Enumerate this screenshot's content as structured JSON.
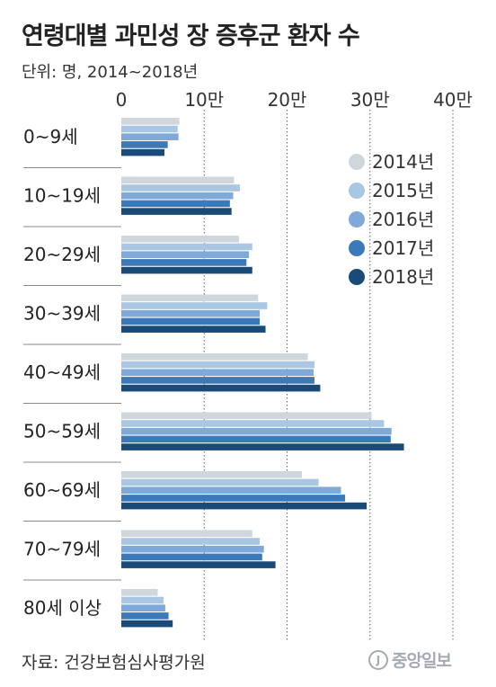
{
  "header": {
    "title": "연령대별 과민성 장 증후군 환자 수",
    "subtitle": "단위: 명, 2014~2018년"
  },
  "footer": {
    "source": "자료: 건강보험심사평가원",
    "logo_text": "중앙일보",
    "logo_icon": "joongang-logo-icon"
  },
  "chart_data": {
    "type": "bar",
    "orientation": "horizontal",
    "title": "연령대별 과민성 장 증후군 환자 수",
    "subtitle": "단위: 명, 2014~2018년",
    "xlim": [
      0,
      400000
    ],
    "x_ticks": [
      0,
      100000,
      200000,
      300000,
      400000
    ],
    "x_tick_labels": [
      "0",
      "10만",
      "20만",
      "30만",
      "40만"
    ],
    "grid": true,
    "legend": "top-right",
    "categories": [
      "0~9세",
      "10~19세",
      "20~29세",
      "30~39세",
      "40~49세",
      "50~59세",
      "60~69세",
      "70~79세",
      "80세 이상"
    ],
    "series": [
      {
        "name": "2014년",
        "color": "#d0d7dc",
        "values": [
          70000,
          136000,
          142000,
          165000,
          225000,
          302000,
          218000,
          158000,
          44000
        ]
      },
      {
        "name": "2015년",
        "color": "#a9c6e3",
        "values": [
          68000,
          143000,
          158000,
          176000,
          233000,
          317000,
          238000,
          167000,
          51000
        ]
      },
      {
        "name": "2016년",
        "color": "#7ea9d9",
        "values": [
          69000,
          135000,
          154000,
          167000,
          232000,
          326000,
          265000,
          172000,
          53000
        ]
      },
      {
        "name": "2017년",
        "color": "#3b79b9",
        "values": [
          56000,
          131000,
          151000,
          167000,
          233000,
          325000,
          270000,
          170000,
          57000
        ]
      },
      {
        "name": "2018년",
        "color": "#1a4a77",
        "values": [
          52000,
          133000,
          158000,
          174000,
          240000,
          341000,
          296000,
          186000,
          62000
        ]
      }
    ]
  }
}
